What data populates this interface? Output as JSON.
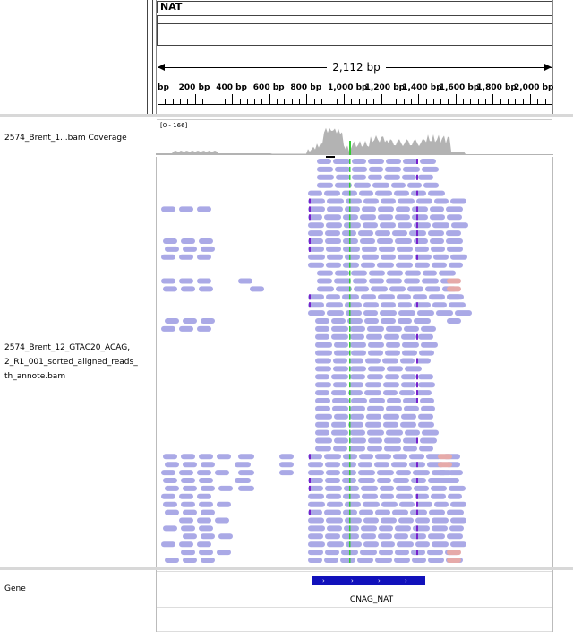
{
  "header": {
    "chromosome_name": "NAT",
    "span_label": "2,112 bp",
    "tick_labels": [
      "bp",
      "200 bp",
      "400 bp",
      "600 bp",
      "800 bp",
      "1,000 bp",
      "1,200 bp",
      "1,400 bp",
      "1,600 bp",
      "1,800 bp",
      "2,000 bp"
    ]
  },
  "tracks": {
    "coverage": {
      "name": "2574_Brent_1...bam Coverage",
      "data_range": "[0 - 166]"
    },
    "alignment": {
      "name_line1": "2574_Brent_12_GTAC20_ACAG,",
      "name_line2": "2_R1_001_sorted_aligned_reads_",
      "name_line3": "th_annote.bam"
    },
    "gene": {
      "name": "Gene",
      "feature_label": "CNAG_NAT",
      "strand_glyph": "›"
    }
  },
  "colors": {
    "read": "#aaa9e6",
    "read_outline": "#9c9bd8",
    "discordant_read": "#e6aaa9",
    "coverage": "#b3b3b3",
    "gene": "#1111bb",
    "mismatch_green": "#33cc33",
    "insertion_purple": "#7722cc"
  }
}
